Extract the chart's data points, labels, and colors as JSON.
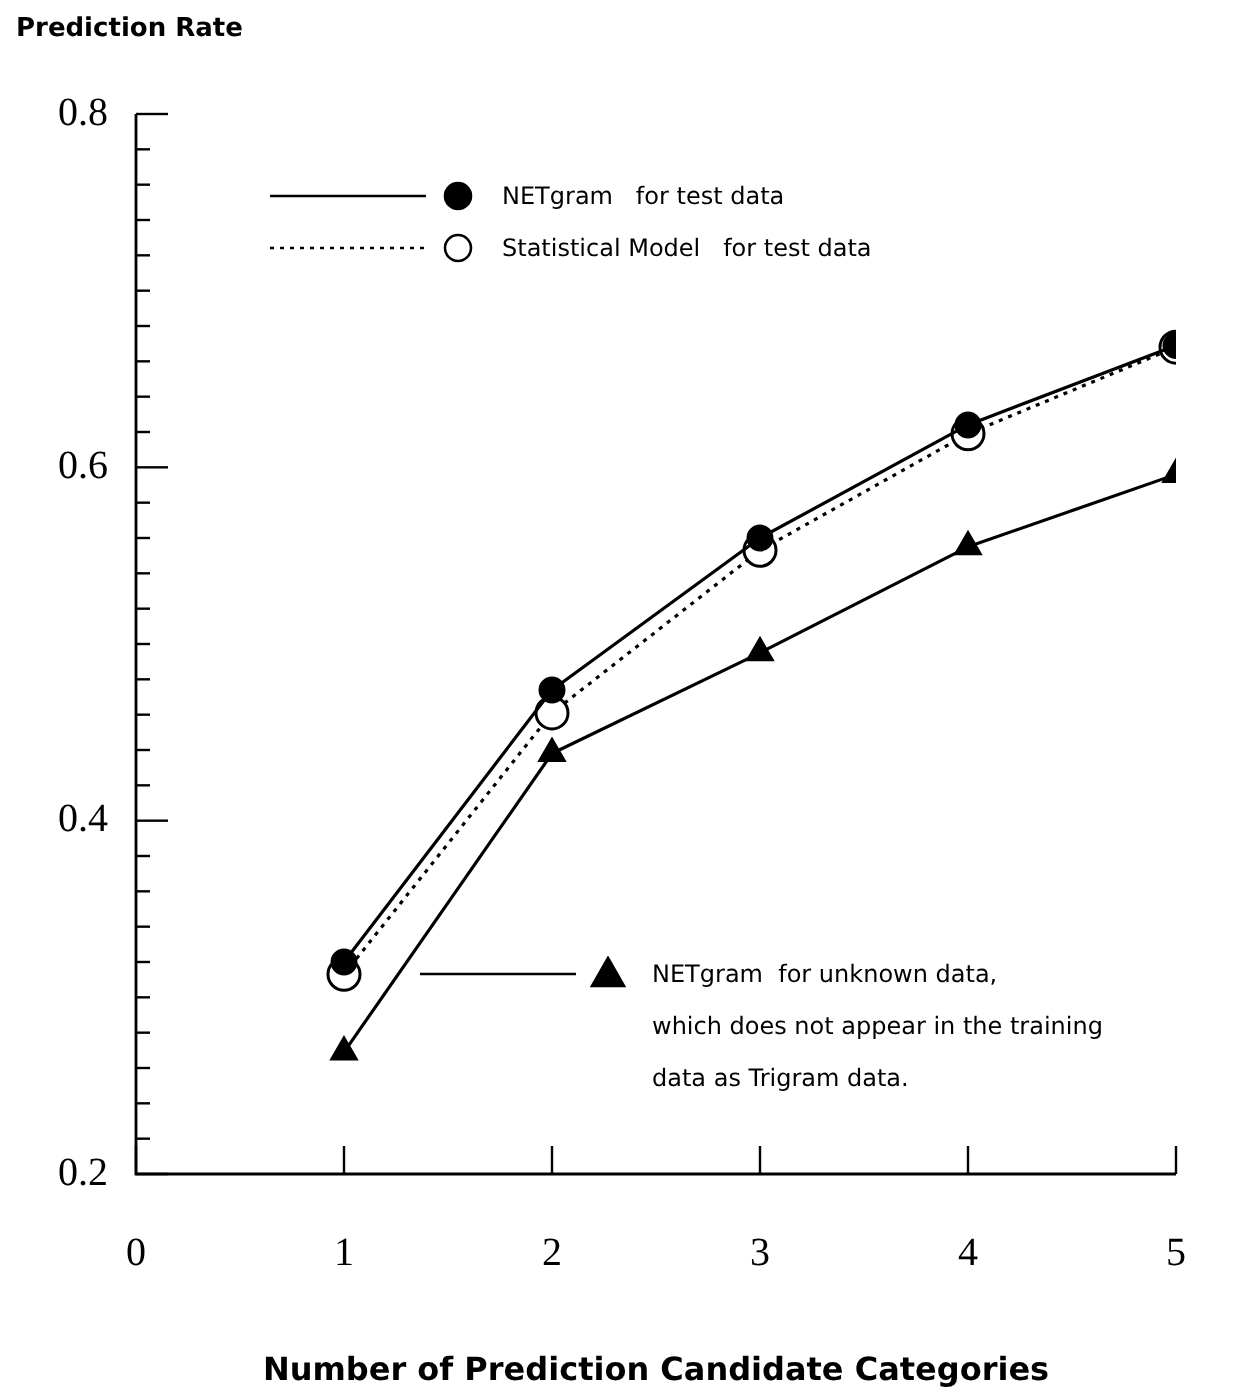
{
  "chart_data": {
    "type": "line",
    "ylabel": "Prediction Rate",
    "xlabel": "Number of Prediction Candidate Categories",
    "x": [
      1,
      2,
      3,
      4,
      5
    ],
    "series": [
      {
        "name": "NETgram   for test data",
        "color": "#000000",
        "marker": "circle",
        "line_style": "solid",
        "values": [
          0.32,
          0.474,
          0.56,
          0.624,
          0.669
        ]
      },
      {
        "name": "Statistical Model   for test data",
        "color": "#000000",
        "marker": "open circle",
        "line_style": "dotted",
        "values": [
          0.313,
          0.461,
          0.553,
          0.619,
          0.668
        ]
      },
      {
        "name": "NETgram  for unknown data,\nwhich does not appear in the training\ndata as Trigram data.",
        "color": "#000000",
        "marker": "triangle",
        "line_style": "solid",
        "values": [
          0.269,
          0.438,
          0.495,
          0.555,
          0.596
        ]
      }
    ],
    "xlim": [
      0,
      5
    ],
    "xticks": [
      0,
      1,
      2,
      3,
      4,
      5
    ],
    "ylim": [
      0.2,
      0.8
    ],
    "yticks": [
      0.2,
      {
        "value": 0.22,
        "label": null
      },
      {
        "value": 0.24,
        "label": null
      },
      {
        "value": 0.26,
        "label": null
      },
      {
        "value": 0.28,
        "label": null
      },
      {
        "value": 0.3,
        "label": null
      },
      {
        "value": 0.32,
        "label": null
      },
      {
        "value": 0.34,
        "label": null
      },
      {
        "value": 0.36,
        "label": null
      },
      {
        "value": 0.38,
        "label": null
      },
      0.4,
      {
        "value": 0.42,
        "label": null
      },
      {
        "value": 0.44,
        "label": null
      },
      {
        "value": 0.46,
        "label": null
      },
      {
        "value": 0.48,
        "label": null
      },
      {
        "value": 0.5,
        "label": null
      },
      {
        "value": 0.52,
        "label": null
      },
      {
        "value": 0.54,
        "label": null
      },
      {
        "value": 0.56,
        "label": null
      },
      {
        "value": 0.58,
        "label": null
      },
      0.6,
      {
        "value": 0.62,
        "label": null
      },
      {
        "value": 0.64,
        "label": null
      },
      {
        "value": 0.66,
        "label": null
      },
      {
        "value": 0.68,
        "label": null
      },
      {
        "value": 0.7,
        "label": null
      },
      {
        "value": 0.72,
        "label": null
      },
      {
        "value": 0.74,
        "label": null
      },
      {
        "value": 0.76,
        "label": null
      },
      {
        "value": 0.78,
        "label": null
      },
      0.8
    ],
    "grid": false,
    "legend": "right"
  }
}
